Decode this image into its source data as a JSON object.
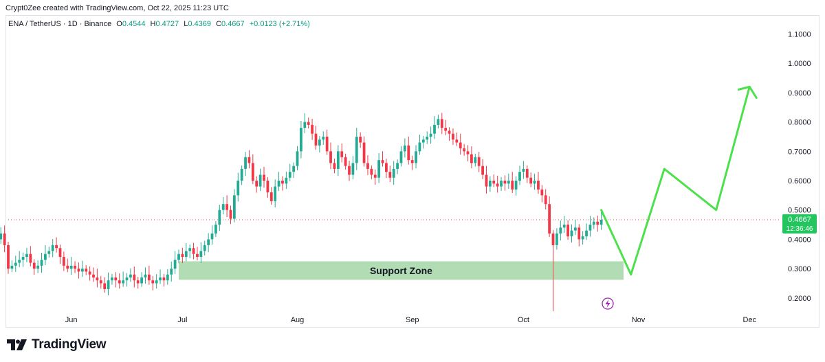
{
  "header": {
    "credit": "Crypt0Zee created with TradingView.com, Oct 22, 2025 11:23 UTC",
    "symbol": "ENA / TetherUS · 1D · Binance",
    "o_label": "O",
    "o_value": "0.4544",
    "h_label": "H",
    "h_value": "0.4727",
    "l_label": "L",
    "l_value": "0.4369",
    "c_label": "C",
    "c_value": "0.4667",
    "change": "+0.0123 (+2.71%)"
  },
  "price_badge": {
    "price": "0.4667",
    "countdown": "12:36:46",
    "value": 0.4667
  },
  "logo": {
    "text": "TradingView",
    "icon": "tradingview-logo-icon"
  },
  "annotation": {
    "label": "Support Zone",
    "low": 0.262,
    "high": 0.325,
    "from": "2025-06-30",
    "to": "2025-10-28"
  },
  "colors": {
    "up": "#089981",
    "candle_up": "#22ab94",
    "candle_down": "#f23645",
    "zone": "#a5d6a7",
    "arrow": "#4ce04c",
    "badge": "#22c55e",
    "lightning": "#9c27b0"
  },
  "chart_data": {
    "type": "candlestick",
    "ylim": [
      0.15,
      1.13
    ],
    "y_ticks": [
      "0.2000",
      "0.3000",
      "0.4000",
      "0.5000",
      "0.6000",
      "0.7000",
      "0.8000",
      "0.9000",
      "1.0000",
      "1.1000"
    ],
    "x_ticks": [
      "Jun",
      "Jul",
      "Aug",
      "Sep",
      "Oct",
      "Nov",
      "Dec"
    ],
    "series": [
      {
        "type": "candlestick",
        "closes": [
          0.42,
          0.41,
          0.43,
          0.4,
          0.44,
          0.39,
          0.41,
          0.42,
          0.4,
          0.43,
          0.41,
          0.4,
          0.42,
          0.38,
          0.3,
          0.31,
          0.32,
          0.33,
          0.34,
          0.35,
          0.32,
          0.3,
          0.31,
          0.33,
          0.35,
          0.36,
          0.38,
          0.37,
          0.34,
          0.31,
          0.3,
          0.31,
          0.3,
          0.29,
          0.3,
          0.29,
          0.28,
          0.27,
          0.26,
          0.25,
          0.23,
          0.26,
          0.27,
          0.26,
          0.25,
          0.26,
          0.27,
          0.28,
          0.26,
          0.25,
          0.27,
          0.28,
          0.26,
          0.25,
          0.26,
          0.27,
          0.26,
          0.28,
          0.3,
          0.33,
          0.35,
          0.34,
          0.36,
          0.37,
          0.35,
          0.34,
          0.36,
          0.38,
          0.4,
          0.42,
          0.45,
          0.5,
          0.52,
          0.5,
          0.47,
          0.55,
          0.6,
          0.64,
          0.68,
          0.66,
          0.6,
          0.58,
          0.62,
          0.6,
          0.56,
          0.53,
          0.58,
          0.6,
          0.59,
          0.61,
          0.63,
          0.65,
          0.7,
          0.78,
          0.8,
          0.79,
          0.76,
          0.72,
          0.74,
          0.75,
          0.7,
          0.66,
          0.64,
          0.7,
          0.68,
          0.65,
          0.62,
          0.66,
          0.75,
          0.73,
          0.66,
          0.64,
          0.62,
          0.61,
          0.67,
          0.66,
          0.63,
          0.61,
          0.64,
          0.66,
          0.7,
          0.72,
          0.67,
          0.66,
          0.7,
          0.73,
          0.74,
          0.75,
          0.76,
          0.79,
          0.81,
          0.78,
          0.77,
          0.76,
          0.74,
          0.73,
          0.71,
          0.7,
          0.69,
          0.66,
          0.68,
          0.65,
          0.62,
          0.58,
          0.6,
          0.59,
          0.58,
          0.6,
          0.59,
          0.6,
          0.57,
          0.6,
          0.63,
          0.64,
          0.61,
          0.59,
          0.6,
          0.57,
          0.55,
          0.52,
          0.42,
          0.38,
          0.42,
          0.44,
          0.45,
          0.41,
          0.43,
          0.44,
          0.4,
          0.41,
          0.43,
          0.45,
          0.46,
          0.45,
          0.4667
        ]
      }
    ],
    "projection": [
      [
        "2025-10-22",
        0.5
      ],
      [
        "2025-10-30",
        0.28
      ],
      [
        "2025-11-08",
        0.64
      ],
      [
        "2025-11-22",
        0.5
      ],
      [
        "2025-12-01",
        0.92
      ]
    ]
  }
}
